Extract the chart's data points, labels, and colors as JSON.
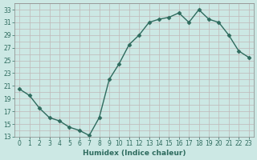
{
  "x": [
    0,
    1,
    2,
    3,
    4,
    5,
    6,
    7,
    8,
    9,
    10,
    11,
    12,
    13,
    14,
    15,
    16,
    17,
    18,
    19,
    20,
    21,
    22,
    23
  ],
  "y": [
    20.5,
    19.5,
    17.5,
    16.0,
    15.5,
    14.5,
    14.0,
    13.2,
    16.0,
    22.0,
    24.5,
    27.5,
    29.0,
    31.0,
    31.5,
    31.8,
    32.5,
    31.0,
    33.0,
    31.5,
    31.0,
    29.0,
    26.5,
    25.5
  ],
  "line_color": "#2e6b5e",
  "marker": "D",
  "markersize": 2.5,
  "linewidth": 1.0,
  "bg_color": "#cce8e4",
  "grid_color": "#c0b8b8",
  "xlabel": "Humidex (Indice chaleur)",
  "ylim": [
    13,
    34
  ],
  "xlim": [
    -0.5,
    23.5
  ],
  "yticks": [
    13,
    15,
    17,
    19,
    21,
    23,
    25,
    27,
    29,
    31,
    33
  ],
  "xticks": [
    0,
    1,
    2,
    3,
    4,
    5,
    6,
    7,
    8,
    9,
    10,
    11,
    12,
    13,
    14,
    15,
    16,
    17,
    18,
    19,
    20,
    21,
    22,
    23
  ],
  "tick_fontsize": 5.5,
  "xlabel_fontsize": 6.5
}
